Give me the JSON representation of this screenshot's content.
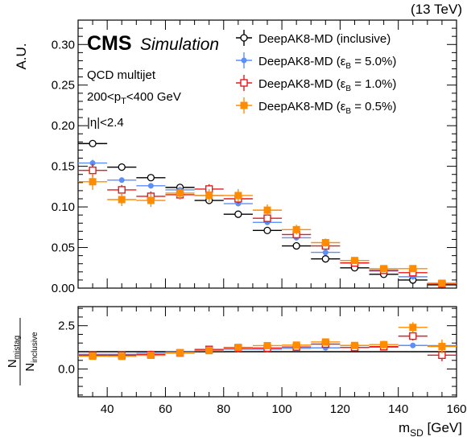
{
  "header": {
    "energy": "(13 TeV)",
    "experiment": "CMS",
    "status": "Simulation"
  },
  "annotations": {
    "sample": "QCD multijet",
    "pt_cut": "200 < p_T < 400 GeV",
    "eta_cut": "|η| < 2.4"
  },
  "colors": {
    "inclusive": "#000000",
    "eff_5": "#5b8ff9",
    "eff_1": "#e41a1c",
    "eff_05": "#ff8c00"
  },
  "chart_data": [
    {
      "type": "scatter",
      "panel": "main",
      "xlabel": "m_SD [GeV]",
      "ylabel": "A.U.",
      "xlim": [
        30,
        160
      ],
      "ylim": [
        0,
        0.33
      ],
      "yticks": [
        0.0,
        0.05,
        0.1,
        0.15,
        0.2,
        0.25,
        0.3
      ],
      "ytick_labels": [
        "0.00",
        "0.05",
        "0.10",
        "0.15",
        "0.20",
        "0.25",
        "0.30"
      ],
      "xticks": [
        40,
        60,
        80,
        100,
        120,
        140,
        160
      ],
      "bin_width": 10,
      "legend_position": "top-right",
      "x": [
        35,
        45,
        55,
        65,
        75,
        85,
        95,
        105,
        115,
        125,
        135,
        145,
        155
      ],
      "series": [
        {
          "key": "inclusive",
          "name": "DeepAK8-MD (inclusive)",
          "marker": "open-circle",
          "values": [
            0.178,
            0.149,
            0.136,
            0.124,
            0.108,
            0.091,
            0.071,
            0.052,
            0.036,
            0.025,
            0.017,
            0.01,
            0.004
          ],
          "errors": [
            0.002,
            0.002,
            0.002,
            0.002,
            0.002,
            0.002,
            0.002,
            0.002,
            0.001,
            0.001,
            0.001,
            0.001,
            0.001
          ]
        },
        {
          "key": "eff_5",
          "name": "DeepAK8-MD (ε_B = 5.0%)",
          "marker": "filled-circle",
          "values": [
            0.154,
            0.133,
            0.126,
            0.121,
            0.114,
            0.104,
            0.081,
            0.062,
            0.044,
            0.031,
            0.021,
            0.014,
            0.006
          ],
          "errors": [
            0.004,
            0.003,
            0.003,
            0.003,
            0.003,
            0.003,
            0.003,
            0.002,
            0.002,
            0.002,
            0.002,
            0.001,
            0.001
          ]
        },
        {
          "key": "eff_1",
          "name": "DeepAK8-MD (ε_B = 1.0%)",
          "marker": "open-square",
          "values": [
            0.145,
            0.121,
            0.113,
            0.115,
            0.122,
            0.11,
            0.086,
            0.066,
            0.052,
            0.031,
            0.022,
            0.019,
            0.005
          ],
          "errors": [
            0.008,
            0.006,
            0.006,
            0.006,
            0.006,
            0.006,
            0.005,
            0.005,
            0.004,
            0.003,
            0.003,
            0.003,
            0.002
          ]
        },
        {
          "key": "eff_05",
          "name": "DeepAK8-MD (ε_B = 0.5%)",
          "marker": "filled-square",
          "values": [
            0.131,
            0.109,
            0.108,
            0.117,
            0.114,
            0.114,
            0.096,
            0.072,
            0.056,
            0.034,
            0.024,
            0.024,
            0.006
          ],
          "errors": [
            0.01,
            0.008,
            0.008,
            0.008,
            0.008,
            0.008,
            0.007,
            0.006,
            0.005,
            0.004,
            0.004,
            0.004,
            0.002
          ]
        }
      ]
    },
    {
      "type": "scatter",
      "panel": "ratio",
      "xlabel": "m_SD [GeV]",
      "ylabel": "N_mistag / N_inclusive",
      "xlim": [
        30,
        160
      ],
      "ylim": [
        -1.6,
        3.6
      ],
      "yticks": [
        0.0,
        2.5
      ],
      "ytick_labels": [
        "0.0",
        "2.5"
      ],
      "reference_line": 1.0,
      "x": [
        35,
        45,
        55,
        65,
        75,
        85,
        95,
        105,
        115,
        125,
        135,
        145,
        155
      ],
      "series": [
        {
          "key": "eff_5",
          "values": [
            0.85,
            0.85,
            0.9,
            0.98,
            1.05,
            1.14,
            1.14,
            1.19,
            1.22,
            1.24,
            1.26,
            1.36,
            1.35
          ],
          "errors": [
            0.05,
            0.05,
            0.05,
            0.05,
            0.05,
            0.05,
            0.05,
            0.06,
            0.07,
            0.08,
            0.1,
            0.12,
            0.18
          ]
        },
        {
          "key": "eff_1",
          "values": [
            0.8,
            0.8,
            0.83,
            0.93,
            1.13,
            1.21,
            1.21,
            1.27,
            1.44,
            1.24,
            1.29,
            1.9,
            0.8
          ],
          "errors": [
            0.08,
            0.08,
            0.08,
            0.08,
            0.08,
            0.09,
            0.1,
            0.11,
            0.13,
            0.15,
            0.18,
            0.25,
            0.35
          ]
        },
        {
          "key": "eff_05",
          "values": [
            0.74,
            0.73,
            0.79,
            0.94,
            1.06,
            1.25,
            1.35,
            1.38,
            1.56,
            1.36,
            1.41,
            2.4,
            1.3
          ],
          "errors": [
            0.1,
            0.1,
            0.1,
            0.1,
            0.1,
            0.11,
            0.12,
            0.13,
            0.16,
            0.18,
            0.22,
            0.3,
            0.4
          ]
        }
      ]
    }
  ]
}
